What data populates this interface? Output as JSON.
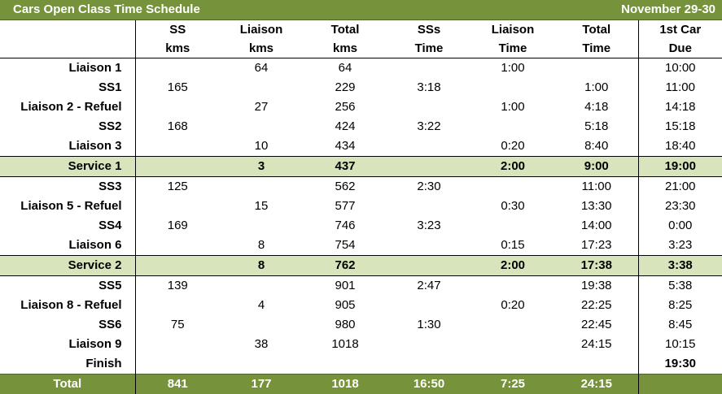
{
  "title": "Cars Open Class Time Schedule",
  "dates": "November 29-30",
  "headers": {
    "row1": [
      "",
      "SS",
      "Liaison",
      "Total",
      "SSs",
      "Liaison",
      "Total",
      "1st Car"
    ],
    "row2": [
      "",
      "kms",
      "kms",
      "kms",
      "Time",
      "Time",
      "Time",
      "Due"
    ]
  },
  "rows": [
    {
      "label": "Liaison 1",
      "ss_kms": "",
      "liaison_kms": "64",
      "total_kms": "64",
      "ss_time": "",
      "liaison_time": "1:00",
      "total_time": "",
      "due": "10:00",
      "service": false
    },
    {
      "label": "SS1",
      "ss_kms": "165",
      "liaison_kms": "",
      "total_kms": "229",
      "ss_time": "3:18",
      "liaison_time": "",
      "total_time": "1:00",
      "due": "11:00",
      "service": false
    },
    {
      "label": "Liaison 2 - Refuel",
      "ss_kms": "",
      "liaison_kms": "27",
      "total_kms": "256",
      "ss_time": "",
      "liaison_time": "1:00",
      "total_time": "4:18",
      "due": "14:18",
      "service": false
    },
    {
      "label": "SS2",
      "ss_kms": "168",
      "liaison_kms": "",
      "total_kms": "424",
      "ss_time": "3:22",
      "liaison_time": "",
      "total_time": "5:18",
      "due": "15:18",
      "service": false
    },
    {
      "label": "Liaison 3",
      "ss_kms": "",
      "liaison_kms": "10",
      "total_kms": "434",
      "ss_time": "",
      "liaison_time": "0:20",
      "total_time": "8:40",
      "due": "18:40",
      "service": false
    },
    {
      "label": "Service 1",
      "ss_kms": "",
      "liaison_kms": "3",
      "total_kms": "437",
      "ss_time": "",
      "liaison_time": "2:00",
      "total_time": "9:00",
      "due": "19:00",
      "service": true
    },
    {
      "label": "SS3",
      "ss_kms": "125",
      "liaison_kms": "",
      "total_kms": "562",
      "ss_time": "2:30",
      "liaison_time": "",
      "total_time": "11:00",
      "due": "21:00",
      "service": false
    },
    {
      "label": "Liaison 5 - Refuel",
      "ss_kms": "",
      "liaison_kms": "15",
      "total_kms": "577",
      "ss_time": "",
      "liaison_time": "0:30",
      "total_time": "13:30",
      "due": "23:30",
      "service": false
    },
    {
      "label": "SS4",
      "ss_kms": "169",
      "liaison_kms": "",
      "total_kms": "746",
      "ss_time": "3:23",
      "liaison_time": "",
      "total_time": "14:00",
      "due": "0:00",
      "service": false
    },
    {
      "label": "Liaison 6",
      "ss_kms": "",
      "liaison_kms": "8",
      "total_kms": "754",
      "ss_time": "",
      "liaison_time": "0:15",
      "total_time": "17:23",
      "due": "3:23",
      "service": false
    },
    {
      "label": "Service 2",
      "ss_kms": "",
      "liaison_kms": "8",
      "total_kms": "762",
      "ss_time": "",
      "liaison_time": "2:00",
      "total_time": "17:38",
      "due": "3:38",
      "service": true
    },
    {
      "label": "SS5",
      "ss_kms": "139",
      "liaison_kms": "",
      "total_kms": "901",
      "ss_time": "2:47",
      "liaison_time": "",
      "total_time": "19:38",
      "due": "5:38",
      "service": false
    },
    {
      "label": "Liaison 8 - Refuel",
      "ss_kms": "",
      "liaison_kms": "4",
      "total_kms": "905",
      "ss_time": "",
      "liaison_time": "0:20",
      "total_time": "22:25",
      "due": "8:25",
      "service": false
    },
    {
      "label": "SS6",
      "ss_kms": "75",
      "liaison_kms": "",
      "total_kms": "980",
      "ss_time": "1:30",
      "liaison_time": "",
      "total_time": "22:45",
      "due": "8:45",
      "service": false
    },
    {
      "label": "Liaison 9",
      "ss_kms": "",
      "liaison_kms": "38",
      "total_kms": "1018",
      "ss_time": "",
      "liaison_time": "",
      "total_time": "24:15",
      "due": "10:15",
      "service": false
    },
    {
      "label": "Finish",
      "ss_kms": "",
      "liaison_kms": "",
      "total_kms": "",
      "ss_time": "",
      "liaison_time": "",
      "total_time": "",
      "due": "19:30",
      "service": false,
      "due_bold": true
    }
  ],
  "total": {
    "label": "Total",
    "ss_kms": "841",
    "liaison_kms": "177",
    "total_kms": "1018",
    "ss_time": "16:50",
    "liaison_time": "7:25",
    "total_time": "24:15",
    "due": ""
  },
  "colors": {
    "header_green": "#76933c",
    "service_green": "#d8e4bc"
  }
}
